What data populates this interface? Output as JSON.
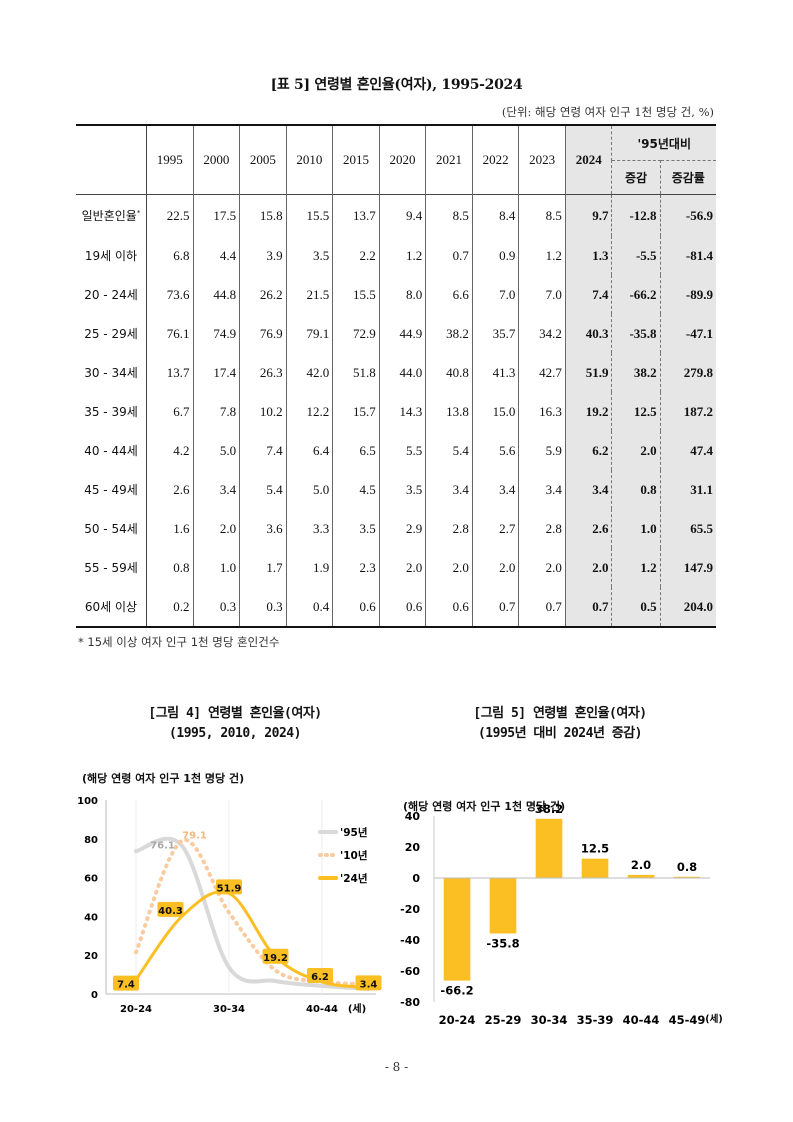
{
  "table": {
    "title": "[표 5] 연령별 혼인율(여자), 1995-2024",
    "unit": "(단위: 해당 연령 여자 인구 1천 명당 건, %)",
    "years": [
      "1995",
      "2000",
      "2005",
      "2010",
      "2015",
      "2020",
      "2021",
      "2022",
      "2023",
      "2024"
    ],
    "compare_header": "'95년대비",
    "sub_headers": [
      "증감",
      "증감률"
    ],
    "rows": [
      {
        "label": "일반혼인율",
        "mark": "*",
        "values": [
          "22.5",
          "17.5",
          "15.8",
          "15.5",
          "13.7",
          "9.4",
          "8.5",
          "8.4",
          "8.5",
          "9.7"
        ],
        "diff": "-12.8",
        "rate": "-56.9"
      },
      {
        "label": "19세 이하",
        "values": [
          "6.8",
          "4.4",
          "3.9",
          "3.5",
          "2.2",
          "1.2",
          "0.7",
          "0.9",
          "1.2",
          "1.3"
        ],
        "diff": "-5.5",
        "rate": "-81.4"
      },
      {
        "label": "20 - 24세",
        "values": [
          "73.6",
          "44.8",
          "26.2",
          "21.5",
          "15.5",
          "8.0",
          "6.6",
          "7.0",
          "7.0",
          "7.4"
        ],
        "diff": "-66.2",
        "rate": "-89.9"
      },
      {
        "label": "25 - 29세",
        "values": [
          "76.1",
          "74.9",
          "76.9",
          "79.1",
          "72.9",
          "44.9",
          "38.2",
          "35.7",
          "34.2",
          "40.3"
        ],
        "diff": "-35.8",
        "rate": "-47.1"
      },
      {
        "label": "30 - 34세",
        "values": [
          "13.7",
          "17.4",
          "26.3",
          "42.0",
          "51.8",
          "44.0",
          "40.8",
          "41.3",
          "42.7",
          "51.9"
        ],
        "diff": "38.2",
        "rate": "279.8"
      },
      {
        "label": "35 - 39세",
        "values": [
          "6.7",
          "7.8",
          "10.2",
          "12.2",
          "15.7",
          "14.3",
          "13.8",
          "15.0",
          "16.3",
          "19.2"
        ],
        "diff": "12.5",
        "rate": "187.2"
      },
      {
        "label": "40 - 44세",
        "values": [
          "4.2",
          "5.0",
          "7.4",
          "6.4",
          "6.5",
          "5.5",
          "5.4",
          "5.6",
          "5.9",
          "6.2"
        ],
        "diff": "2.0",
        "rate": "47.4"
      },
      {
        "label": "45 - 49세",
        "values": [
          "2.6",
          "3.4",
          "5.4",
          "5.0",
          "4.5",
          "3.5",
          "3.4",
          "3.4",
          "3.4",
          "3.4"
        ],
        "diff": "0.8",
        "rate": "31.1"
      },
      {
        "label": "50 - 54세",
        "values": [
          "1.6",
          "2.0",
          "3.6",
          "3.3",
          "3.5",
          "2.9",
          "2.8",
          "2.7",
          "2.8",
          "2.6"
        ],
        "diff": "1.0",
        "rate": "65.5"
      },
      {
        "label": "55 - 59세",
        "values": [
          "0.8",
          "1.0",
          "1.7",
          "1.9",
          "2.3",
          "2.0",
          "2.0",
          "2.0",
          "2.0",
          "2.0"
        ],
        "diff": "1.2",
        "rate": "147.9"
      },
      {
        "label": "60세 이상",
        "values": [
          "0.2",
          "0.3",
          "0.3",
          "0.4",
          "0.6",
          "0.6",
          "0.6",
          "0.7",
          "0.7",
          "0.7"
        ],
        "diff": "0.5",
        "rate": "204.0"
      }
    ],
    "footnote": "* 15세 이상 여자 인구 1천 명당 혼인건수"
  },
  "chart_data": [
    {
      "type": "line",
      "title": "[그림 4] 연령별 혼인율(여자)",
      "subtitle": "(1995, 2010, 2024)",
      "ylabel": "(해당 연령 여자 인구 1천 명당 건)",
      "xlabel": "(세)",
      "ylim": [
        0,
        100
      ],
      "yticks": [
        "0",
        "20",
        "40",
        "60",
        "80",
        "100"
      ],
      "categories": [
        "20-24",
        "25-29",
        "30-34",
        "35-39",
        "40-44",
        "45-49"
      ],
      "xtick_labels": [
        "20-24",
        "30-34",
        "40-44"
      ],
      "series": [
        {
          "name": "'95년",
          "values": [
            73.6,
            76.1,
            13.7,
            6.7,
            4.2,
            2.6
          ],
          "color": "#d9d9d9",
          "style": "solid"
        },
        {
          "name": "'10년",
          "values": [
            21.5,
            79.1,
            42.0,
            12.2,
            6.4,
            5.0
          ],
          "color": "#f8cba0",
          "style": "dotted"
        },
        {
          "name": "'24년",
          "values": [
            7.4,
            40.3,
            51.9,
            19.2,
            6.2,
            3.4
          ],
          "color": "#fbbf24",
          "style": "solid"
        }
      ],
      "annotations": [
        "7.4",
        "40.3",
        "51.9",
        "19.2",
        "6.2",
        "3.4",
        "76.1",
        "79.1"
      ]
    },
    {
      "type": "bar",
      "title": "[그림 5] 연령별 혼인율(여자)",
      "subtitle": "(1995년 대비 2024년 증감)",
      "ylabel": "(해당 연령 여자 인구 1천 명당 건)",
      "xlabel": "(세)",
      "ylim": [
        -80,
        40
      ],
      "yticks": [
        "-80",
        "-60",
        "-40",
        "-20",
        "0",
        "20",
        "40"
      ],
      "categories": [
        "20-24",
        "25-29",
        "30-34",
        "35-39",
        "40-44",
        "45-49"
      ],
      "values": [
        -66.2,
        -35.8,
        38.2,
        12.5,
        2.0,
        0.8
      ],
      "labels": [
        "-66.2",
        "-35.8",
        "38.2",
        "12.5",
        "2.0",
        "0.8"
      ],
      "color": "#fbbf24"
    }
  ],
  "page_number": "- 8 -"
}
